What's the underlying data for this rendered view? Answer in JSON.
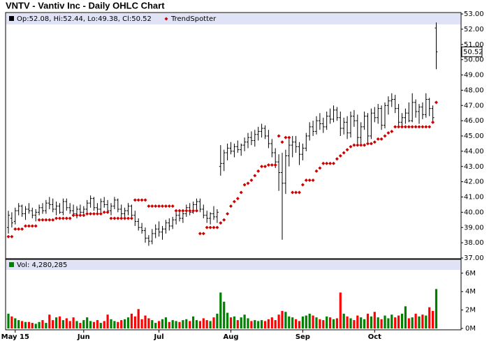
{
  "chart_data": [
    {
      "type": "ohlc",
      "title": "VNTV - Vantiv Inc - Daily OHLC Chart",
      "legend_text": "Op:52.08, Hi:52.44, Lo:49.38, Cl:50.52",
      "color": "#000000",
      "open": [
        39.0,
        39.6,
        39.4,
        40.1,
        40.4,
        39.9,
        40.2,
        40.1,
        39.8,
        40.0,
        40.3,
        40.1,
        40.6,
        40.5,
        40.2,
        40.4,
        40.0,
        40.7,
        40.3,
        40.1,
        39.9,
        40.2,
        40.0,
        40.2,
        40.6,
        40.9,
        40.3,
        40.2,
        40.7,
        40.5,
        40.1,
        40.4,
        40.8,
        40.2,
        39.9,
        40.1,
        40.4,
        39.8,
        39.4,
        39.0,
        38.8,
        38.3,
        38.1,
        38.6,
        38.9,
        38.7,
        38.9,
        39.3,
        39.1,
        39.5,
        39.8,
        39.6,
        39.9,
        40.3,
        40.0,
        40.5,
        40.7,
        40.2,
        39.8,
        39.6,
        39.9,
        39.7,
        43.0,
        43.2,
        43.9,
        44.2,
        44.0,
        44.3,
        44.1,
        44.4,
        44.6,
        44.9,
        44.7,
        45.1,
        45.3,
        45.5,
        45.0,
        44.5,
        43.9,
        43.3,
        42.6,
        41.9,
        43.7,
        44.4,
        44.6,
        44.3,
        43.8,
        44.2,
        45.0,
        45.6,
        45.3,
        46.0,
        45.8,
        45.6,
        46.3,
        46.1,
        46.7,
        46.2,
        45.5,
        45.9,
        45.2,
        46.3,
        46.0,
        44.9,
        45.6,
        46.3,
        45.0,
        46.5,
        46.2,
        46.8,
        45.7,
        47.0,
        47.3,
        47.4,
        46.8,
        45.9,
        46.2,
        46.5,
        46.0,
        47.2,
        46.6,
        46.9,
        46.4,
        47.4,
        46.8,
        52.08
      ],
      "high": [
        40.1,
        40.0,
        40.3,
        40.6,
        40.5,
        40.4,
        40.6,
        40.3,
        40.2,
        40.5,
        40.6,
        40.8,
        41.0,
        40.9,
        40.7,
        40.6,
        40.9,
        40.9,
        40.6,
        40.5,
        40.4,
        40.5,
        40.4,
        40.8,
        41.1,
        41.0,
        40.6,
        40.9,
        41.0,
        40.8,
        40.6,
        41.0,
        40.9,
        40.5,
        40.3,
        40.6,
        40.5,
        40.1,
        39.6,
        39.3,
        39.0,
        38.5,
        38.9,
        39.2,
        39.4,
        39.1,
        39.5,
        39.6,
        39.7,
        40.0,
        40.2,
        40.1,
        40.5,
        40.6,
        40.7,
        40.9,
        40.9,
        40.5,
        40.1,
        40.0,
        40.4,
        40.2,
        44.4,
        44.1,
        44.5,
        44.6,
        44.5,
        44.7,
        44.5,
        44.9,
        45.2,
        45.3,
        45.4,
        45.6,
        45.8,
        45.7,
        45.4,
        44.8,
        44.2,
        43.8,
        43.9,
        44.1,
        44.8,
        45.0,
        45.0,
        44.6,
        44.5,
        45.2,
        45.9,
        46.0,
        46.3,
        46.5,
        46.2,
        46.6,
        46.8,
        47.0,
        46.9,
        46.6,
        46.2,
        46.3,
        46.6,
        46.7,
        46.4,
        45.9,
        46.6,
        46.5,
        46.8,
        46.9,
        47.1,
        47.0,
        47.2,
        47.6,
        47.8,
        47.7,
        47.1,
        46.5,
        46.8,
        47.2,
        47.8,
        47.4,
        47.1,
        47.2,
        47.8,
        47.5,
        47.0,
        52.44
      ],
      "low": [
        38.6,
        39.0,
        39.2,
        39.8,
        39.7,
        39.5,
        39.9,
        39.6,
        39.4,
        39.8,
        39.9,
        39.9,
        40.2,
        40.0,
        39.8,
        39.9,
        39.8,
        40.1,
        39.9,
        39.7,
        39.6,
        39.8,
        39.7,
        40.0,
        40.3,
        40.1,
        39.9,
        40.0,
        40.3,
        39.9,
        39.8,
        40.2,
        40.0,
        39.6,
        39.5,
        39.8,
        39.6,
        39.1,
        38.8,
        38.6,
        38.0,
        37.8,
        37.9,
        38.3,
        38.4,
        38.2,
        38.6,
        38.8,
        38.9,
        39.2,
        39.4,
        39.3,
        39.7,
        39.8,
        39.9,
        40.1,
        40.0,
        39.6,
        39.3,
        39.2,
        39.5,
        39.3,
        42.4,
        42.7,
        43.4,
        43.8,
        43.6,
        43.9,
        43.7,
        44.0,
        44.2,
        44.4,
        44.3,
        44.7,
        44.9,
        44.8,
        44.2,
        43.6,
        42.9,
        41.4,
        38.2,
        41.2,
        43.0,
        43.6,
        43.9,
        43.1,
        43.4,
        44.0,
        44.7,
        45.0,
        45.1,
        45.4,
        45.2,
        45.4,
        45.8,
        45.9,
        46.0,
        45.0,
        45.1,
        44.8,
        44.9,
        45.6,
        44.5,
        44.4,
        45.4,
        44.6,
        44.8,
        45.9,
        45.8,
        45.4,
        45.5,
        46.4,
        46.9,
        46.5,
        45.6,
        45.5,
        45.8,
        45.9,
        45.9,
        46.2,
        45.8,
        46.1,
        46.2,
        46.3,
        45.8,
        49.38
      ],
      "close": [
        39.8,
        39.3,
        40.1,
        40.4,
        39.9,
        40.2,
        40.1,
        39.8,
        40.0,
        40.3,
        40.1,
        40.6,
        40.5,
        40.2,
        40.4,
        40.0,
        40.7,
        40.3,
        40.1,
        39.9,
        40.2,
        40.0,
        40.2,
        40.6,
        40.9,
        40.3,
        40.2,
        40.7,
        40.5,
        40.1,
        40.4,
        40.8,
        40.2,
        39.9,
        40.1,
        40.4,
        39.8,
        39.4,
        39.0,
        38.8,
        38.3,
        38.1,
        38.6,
        38.9,
        38.7,
        38.9,
        39.3,
        39.1,
        39.5,
        39.8,
        39.6,
        39.9,
        40.3,
        40.0,
        40.5,
        40.7,
        40.2,
        39.8,
        39.6,
        39.9,
        39.7,
        40.0,
        43.2,
        43.9,
        44.2,
        44.0,
        44.3,
        44.1,
        44.4,
        44.6,
        44.9,
        44.7,
        45.1,
        45.3,
        45.5,
        45.0,
        44.5,
        43.9,
        43.3,
        42.6,
        41.9,
        43.7,
        44.4,
        44.6,
        44.3,
        43.8,
        44.2,
        45.0,
        45.6,
        45.3,
        46.0,
        45.8,
        45.6,
        46.3,
        46.1,
        46.7,
        46.2,
        45.5,
        45.9,
        45.2,
        46.3,
        46.0,
        44.9,
        45.6,
        46.3,
        45.0,
        46.5,
        46.2,
        46.8,
        45.7,
        47.0,
        47.3,
        47.4,
        46.8,
        45.9,
        46.2,
        46.5,
        46.0,
        47.2,
        46.6,
        46.9,
        46.4,
        47.4,
        46.8,
        46.2,
        50.52
      ],
      "series": [
        {
          "name": "TrendSpotter",
          "color": "#cc0000",
          "values": [
            38.4,
            38.4,
            38.9,
            38.9,
            38.9,
            39.1,
            39.1,
            39.1,
            39.1,
            39.5,
            39.5,
            39.5,
            39.5,
            39.5,
            39.6,
            39.6,
            39.6,
            39.6,
            39.6,
            39.8,
            39.8,
            39.8,
            39.8,
            39.9,
            39.9,
            39.9,
            39.9,
            39.9,
            40.0,
            40.0,
            39.6,
            39.6,
            39.6,
            39.6,
            39.6,
            39.6,
            39.6,
            40.8,
            40.8,
            40.8,
            40.8,
            40.4,
            40.4,
            40.4,
            40.4,
            40.4,
            40.4,
            40.4,
            40.4,
            40.1,
            40.1,
            40.1,
            40.1,
            40.1,
            40.1,
            40.1,
            38.6,
            38.6,
            39.0,
            39.0,
            39.0,
            39.0,
            39.3,
            39.5,
            39.9,
            40.4,
            40.7,
            40.9,
            41.3,
            41.8,
            41.9,
            42.1,
            42.4,
            42.7,
            43.0,
            43.0,
            43.1,
            43.1,
            43.1,
            45.0,
            44.6,
            44.9,
            44.9,
            41.3,
            41.3,
            41.3,
            41.8,
            42.1,
            42.1,
            42.1,
            42.7,
            42.9,
            43.2,
            43.2,
            43.2,
            43.2,
            43.5,
            43.7,
            43.9,
            44.1,
            44.3,
            44.4,
            44.4,
            44.4,
            44.4,
            44.5,
            44.5,
            44.6,
            44.8,
            44.8,
            45.0,
            45.2,
            45.3,
            45.6,
            45.6,
            45.6,
            45.6,
            45.6,
            45.6,
            45.6,
            45.6,
            45.6,
            45.6,
            45.6,
            45.9,
            47.2
          ]
        }
      ],
      "ylim": [
        37,
        53
      ],
      "yticks": [
        {
          "value": 37,
          "label": "37.00"
        },
        {
          "value": 38,
          "label": "38.00"
        },
        {
          "value": 39,
          "label": "39.00"
        },
        {
          "value": 40,
          "label": "40.00"
        },
        {
          "value": 41,
          "label": "41.00"
        },
        {
          "value": 42,
          "label": "42.00"
        },
        {
          "value": 43,
          "label": "43.00"
        },
        {
          "value": 44,
          "label": "44.00"
        },
        {
          "value": 45,
          "label": "45.00"
        },
        {
          "value": 46,
          "label": "46.00"
        },
        {
          "value": 47,
          "label": "47.00"
        },
        {
          "value": 48,
          "label": "48.00"
        },
        {
          "value": 49,
          "label": "49.00"
        },
        {
          "value": 50,
          "label": "50.00"
        },
        {
          "value": 51,
          "label": "51.00"
        },
        {
          "value": 52,
          "label": "52.00"
        },
        {
          "value": 53,
          "label": "53.00"
        }
      ]
    },
    {
      "type": "bar",
      "legend_text": "Vol: 4,280,285",
      "up_color": "#008000",
      "down_color": "#ff0000",
      "categories": [
        null,
        null,
        "May 15",
        null,
        null,
        null,
        null,
        null,
        null,
        null,
        null,
        null,
        null,
        null,
        null,
        null,
        null,
        null,
        null,
        null,
        null,
        null,
        "Jun",
        null,
        null,
        null,
        null,
        null,
        null,
        null,
        null,
        null,
        null,
        null,
        null,
        null,
        null,
        null,
        null,
        null,
        null,
        null,
        null,
        null,
        "Jul",
        null,
        null,
        null,
        null,
        null,
        null,
        null,
        null,
        null,
        null,
        null,
        null,
        null,
        null,
        null,
        null,
        null,
        null,
        null,
        null,
        "Aug",
        null,
        null,
        null,
        null,
        null,
        null,
        null,
        null,
        null,
        null,
        null,
        null,
        null,
        null,
        null,
        null,
        null,
        null,
        null,
        null,
        "Sep",
        null,
        null,
        null,
        null,
        null,
        null,
        null,
        null,
        null,
        null,
        null,
        null,
        null,
        null,
        null,
        null,
        null,
        null,
        null,
        null,
        "Oct",
        null,
        null,
        null,
        null,
        null,
        null,
        null,
        null,
        null,
        null,
        null,
        null,
        null,
        null,
        null,
        null,
        null,
        null
      ],
      "values": [
        1.6,
        1.3,
        1.1,
        0.9,
        0.8,
        0.7,
        0.7,
        0.6,
        0.5,
        0.7,
        0.9,
        0.6,
        1.5,
        0.9,
        1.2,
        1.3,
        0.9,
        1.1,
        0.8,
        1.2,
        0.8,
        0.6,
        0.9,
        1.2,
        0.8,
        0.7,
        0.9,
        0.6,
        0.8,
        1.5,
        1.0,
        0.8,
        0.7,
        0.9,
        1.0,
        1.2,
        1.6,
        1.3,
        2.1,
        1.0,
        1.4,
        1.1,
        0.9,
        0.6,
        0.8,
        1.0,
        1.2,
        0.7,
        0.9,
        0.8,
        0.7,
        0.9,
        1.0,
        0.8,
        1.3,
        0.9,
        0.8,
        1.1,
        0.9,
        0.8,
        1.2,
        1.6,
        3.9,
        2.9,
        1.7,
        1.2,
        1.3,
        0.9,
        1.2,
        1.5,
        1.1,
        0.8,
        0.9,
        0.8,
        0.9,
        0.8,
        1.0,
        1.2,
        0.9,
        1.5,
        1.9,
        1.8,
        1.3,
        1.2,
        1.0,
        0.8,
        1.3,
        1.4,
        1.6,
        1.4,
        1.2,
        1.0,
        0.9,
        1.3,
        1.2,
        1.0,
        1.1,
        3.9,
        1.6,
        1.3,
        1.1,
        0.9,
        1.4,
        1.2,
        1.0,
        1.6,
        1.3,
        1.8,
        1.2,
        1.0,
        1.4,
        1.1,
        1.5,
        1.2,
        1.4,
        1.6,
        2.4,
        1.1,
        1.2,
        1.6,
        1.3,
        1.5,
        1.4,
        2.3,
        1.9,
        4.280285
      ],
      "ylim": [
        0,
        7.5
      ],
      "yticks": [
        {
          "value": 0,
          "label": "0M"
        },
        {
          "value": 2,
          "label": "2M"
        },
        {
          "value": 4,
          "label": "4M"
        },
        {
          "value": 6,
          "label": "6M"
        }
      ]
    }
  ]
}
